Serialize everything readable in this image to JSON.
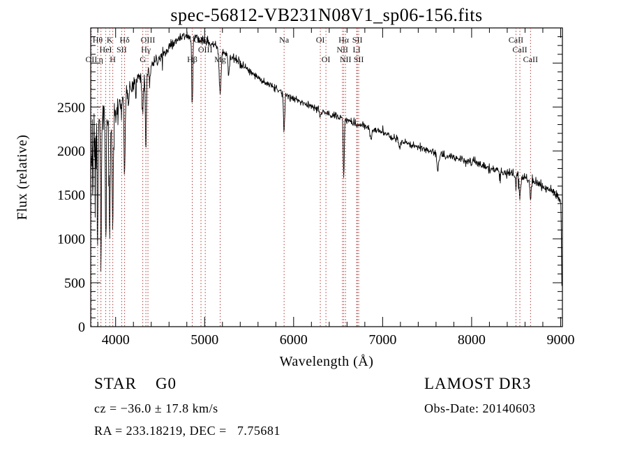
{
  "title": "spec-56812-VB231N08V1_sp06-156.fits",
  "colors": {
    "background": "#ffffff",
    "spectrum": "#000000",
    "line_marker": "#a83a3a",
    "line_label": "#141414"
  },
  "axes": {
    "x": {
      "label": "Wavelength (Å)",
      "ticks": [
        4000,
        5000,
        6000,
        7000,
        8000,
        9000
      ],
      "range": [
        3720,
        9020
      ],
      "minor_step": 200
    },
    "y": {
      "label": "Flux (relative)",
      "ticks": [
        0,
        500,
        1000,
        1500,
        2000,
        2500
      ],
      "range": [
        0,
        3400
      ],
      "minor_step": 100
    }
  },
  "footer": {
    "class_line": "STAR    G0",
    "survey": "LAMOST DR3",
    "cz_line": "cz = −36.0 ± 17.8 km/s",
    "obs_date": "Obs-Date: 20140603",
    "ra_dec": "RA = 233.18219, DEC =   7.75681"
  },
  "chart_data": {
    "type": "line",
    "title": "spec-56812-VB231N08V1_sp06-156.fits",
    "xlabel": "Wavelength (Å)",
    "ylabel": "Flux (relative)",
    "xlim": [
      3720,
      9020
    ],
    "ylim": [
      0,
      3400
    ],
    "legend": null,
    "grid": false,
    "series_name": "flux",
    "continuum_points": [
      [
        3720,
        1700
      ],
      [
        3727,
        2150
      ],
      [
        3740,
        2430
      ],
      [
        3760,
        2380
      ],
      [
        3790,
        2320
      ],
      [
        3820,
        2370
      ],
      [
        3860,
        2400
      ],
      [
        3900,
        2390
      ],
      [
        3950,
        2430
      ],
      [
        4000,
        2500
      ],
      [
        4060,
        2580
      ],
      [
        4120,
        2650
      ],
      [
        4200,
        2760
      ],
      [
        4280,
        2850
      ],
      [
        4360,
        2930
      ],
      [
        4450,
        3020
      ],
      [
        4550,
        3130
      ],
      [
        4650,
        3230
      ],
      [
        4750,
        3300
      ],
      [
        4820,
        3310
      ],
      [
        4900,
        3290
      ],
      [
        5000,
        3250
      ],
      [
        5100,
        3210
      ],
      [
        5200,
        3150
      ],
      [
        5300,
        3070
      ],
      [
        5400,
        2990
      ],
      [
        5500,
        2910
      ],
      [
        5600,
        2840
      ],
      [
        5700,
        2770
      ],
      [
        5800,
        2710
      ],
      [
        5900,
        2650
      ],
      [
        6000,
        2600
      ],
      [
        6100,
        2550
      ],
      [
        6200,
        2500
      ],
      [
        6300,
        2460
      ],
      [
        6400,
        2420
      ],
      [
        6500,
        2390
      ],
      [
        6600,
        2350
      ],
      [
        6700,
        2310
      ],
      [
        6800,
        2270
      ],
      [
        6900,
        2240
      ],
      [
        7000,
        2210
      ],
      [
        7100,
        2160
      ],
      [
        7200,
        2120
      ],
      [
        7300,
        2080
      ],
      [
        7400,
        2040
      ],
      [
        7500,
        2010
      ],
      [
        7600,
        1975
      ],
      [
        7700,
        1945
      ],
      [
        7800,
        1915
      ],
      [
        7900,
        1890
      ],
      [
        8000,
        1870
      ],
      [
        8100,
        1840
      ],
      [
        8200,
        1810
      ],
      [
        8300,
        1780
      ],
      [
        8400,
        1750
      ],
      [
        8500,
        1720
      ],
      [
        8600,
        1680
      ],
      [
        8700,
        1640
      ],
      [
        8800,
        1590
      ],
      [
        8900,
        1540
      ],
      [
        8960,
        1500
      ],
      [
        9000,
        1440
      ],
      [
        9006,
        1200
      ],
      [
        9011,
        750
      ],
      [
        9016,
        300
      ]
    ],
    "absorption_features": [
      {
        "wl": 3727,
        "depth": 250,
        "sigma": 5
      },
      {
        "wl": 3734,
        "depth": 350,
        "sigma": 3
      },
      {
        "wl": 3750,
        "depth": 500,
        "sigma": 4
      },
      {
        "wl": 3770,
        "depth": 600,
        "sigma": 4
      },
      {
        "wl": 3798,
        "depth": 1500,
        "sigma": 5
      },
      {
        "wl": 3835,
        "depth": 1600,
        "sigma": 5
      },
      {
        "wl": 3889,
        "depth": 1400,
        "sigma": 5
      },
      {
        "wl": 3933,
        "depth": 1500,
        "sigma": 6
      },
      {
        "wl": 3968,
        "depth": 1400,
        "sigma": 6
      },
      {
        "wl": 4026,
        "depth": 200,
        "sigma": 4
      },
      {
        "wl": 4068,
        "depth": 200,
        "sigma": 4
      },
      {
        "wl": 4101,
        "depth": 900,
        "sigma": 6
      },
      {
        "wl": 4144,
        "depth": 150,
        "sigma": 4
      },
      {
        "wl": 4226,
        "depth": 200,
        "sigma": 4
      },
      {
        "wl": 4305,
        "depth": 420,
        "sigma": 9
      },
      {
        "wl": 4340,
        "depth": 880,
        "sigma": 6
      },
      {
        "wl": 4383,
        "depth": 200,
        "sigma": 5
      },
      {
        "wl": 4861,
        "depth": 800,
        "sigma": 6
      },
      {
        "wl": 5175,
        "depth": 500,
        "sigma": 11
      },
      {
        "wl": 5270,
        "depth": 220,
        "sigma": 8
      },
      {
        "wl": 5893,
        "depth": 430,
        "sigma": 7
      },
      {
        "wl": 6300,
        "depth": 70,
        "sigma": 5
      },
      {
        "wl": 6563,
        "depth": 640,
        "sigma": 6
      },
      {
        "wl": 6870,
        "depth": 130,
        "sigma": 8
      },
      {
        "wl": 7190,
        "depth": 80,
        "sigma": 11
      },
      {
        "wl": 7620,
        "depth": 190,
        "sigma": 10
      },
      {
        "wl": 8498,
        "depth": 160,
        "sigma": 6
      },
      {
        "wl": 8542,
        "depth": 240,
        "sigma": 7
      },
      {
        "wl": 8662,
        "depth": 210,
        "sigma": 7
      }
    ],
    "line_markers": [
      {
        "wavelength": 3727,
        "label": "OII",
        "row": 2
      },
      {
        "wavelength": 3798,
        "label": "Hθ",
        "row": 0
      },
      {
        "wavelength": 3835,
        "label": "η",
        "row": 2
      },
      {
        "wavelength": 3889,
        "label": "HeI",
        "row": 1
      },
      {
        "wavelength": 3933,
        "label": "K",
        "row": 0
      },
      {
        "wavelength": 3968,
        "label": "H",
        "row": 2
      },
      {
        "wavelength": 4068,
        "label": "SII",
        "row": 1
      },
      {
        "wavelength": 4101,
        "label": "Hδ",
        "row": 0
      },
      {
        "wavelength": 4305,
        "label": "G",
        "row": 2
      },
      {
        "wavelength": 4340,
        "label": "Hγ",
        "row": 1
      },
      {
        "wavelength": 4363,
        "label": "OIII",
        "row": 0
      },
      {
        "wavelength": 4861,
        "label": "Hβ",
        "row": 2
      },
      {
        "wavelength": 4959,
        "label": "OIII",
        "row": 0
      },
      {
        "wavelength": 5007,
        "label": "OIII",
        "row": 1
      },
      {
        "wavelength": 5175,
        "label": "Mg",
        "row": 2
      },
      {
        "wavelength": 5893,
        "label": "Na",
        "row": 0
      },
      {
        "wavelength": 6300,
        "label": "OI",
        "row": 0
      },
      {
        "wavelength": 6363,
        "label": "OI",
        "row": 2
      },
      {
        "wavelength": 6548,
        "label": "NII",
        "row": 1
      },
      {
        "wavelength": 6563,
        "label": "Hα",
        "row": 0
      },
      {
        "wavelength": 6583,
        "label": "NII",
        "row": 2
      },
      {
        "wavelength": 6708,
        "label": "LI",
        "row": 1
      },
      {
        "wavelength": 6716,
        "label": "SII",
        "row": 0
      },
      {
        "wavelength": 6731,
        "label": "SII",
        "row": 2
      },
      {
        "wavelength": 8498,
        "label": "CaII",
        "row": 0
      },
      {
        "wavelength": 8542,
        "label": "CaII",
        "row": 1
      },
      {
        "wavelength": 8662,
        "label": "CaII",
        "row": 2
      }
    ],
    "noise": {
      "seed": 20140603,
      "step": 4,
      "amplitude_profile": [
        [
          3720,
          100
        ],
        [
          3900,
          80
        ],
        [
          4100,
          55
        ],
        [
          4400,
          35
        ],
        [
          4800,
          28
        ],
        [
          5500,
          24
        ],
        [
          6500,
          21
        ],
        [
          7500,
          21
        ],
        [
          8300,
          25
        ],
        [
          8800,
          29
        ],
        [
          9016,
          33
        ]
      ]
    }
  }
}
